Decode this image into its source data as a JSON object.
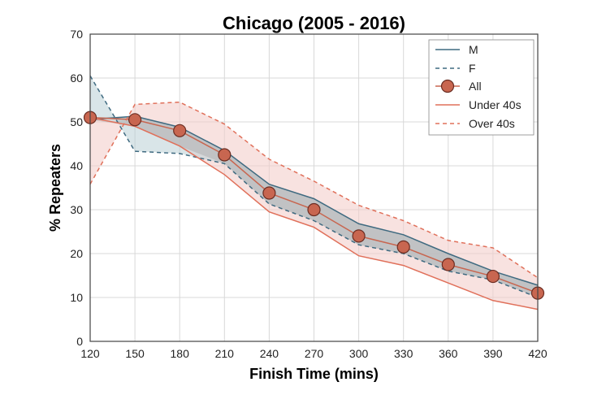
{
  "chart_data": {
    "type": "line",
    "title": "Chicago (2005 - 2016)",
    "xlabel": "Finish Time (mins)",
    "ylabel": "% Repeaters",
    "xlim": [
      120,
      420
    ],
    "ylim": [
      0,
      70
    ],
    "x_ticks": [
      "120",
      "150",
      "180",
      "210",
      "240",
      "270",
      "300",
      "330",
      "360",
      "390",
      "420"
    ],
    "y_ticks": [
      "0",
      "10",
      "20",
      "30",
      "40",
      "50",
      "60",
      "70"
    ],
    "grid": true,
    "legend_position": "top-right",
    "x": [
      120,
      150,
      180,
      210,
      240,
      270,
      300,
      330,
      360,
      390,
      420
    ],
    "series": [
      {
        "name": "M",
        "style": "solid",
        "color": "#3f6a80",
        "values": [
          50.5,
          51.3,
          48.8,
          43.5,
          35.8,
          32.5,
          26.8,
          24.3,
          20.0,
          16.0,
          12.8
        ]
      },
      {
        "name": "F",
        "style": "dashed",
        "color": "#3f6a80",
        "values": [
          60.5,
          43.3,
          42.8,
          40.5,
          31.3,
          27.5,
          22.0,
          20.0,
          16.0,
          14.0,
          10.0
        ]
      },
      {
        "name": "All",
        "style": "marker",
        "color": "#c86650",
        "values": [
          51.0,
          50.5,
          48.0,
          42.5,
          33.8,
          30.0,
          24.0,
          21.5,
          17.5,
          14.8,
          11.0
        ]
      },
      {
        "name": "Under 40s",
        "style": "solid",
        "color": "#e0705a",
        "values": [
          51.0,
          49.0,
          44.5,
          38.0,
          29.5,
          26.0,
          19.5,
          17.3,
          13.3,
          9.3,
          7.3
        ]
      },
      {
        "name": "Over 40s",
        "style": "dashed",
        "color": "#e0705a",
        "values": [
          35.8,
          54.0,
          54.5,
          49.5,
          41.5,
          36.5,
          31.0,
          27.5,
          23.0,
          21.3,
          14.5
        ]
      }
    ],
    "colors": {
      "gender_band_fill": "#b9d0d6",
      "age_band_fill": "#f4cfcb",
      "inner_band_fill": "#a8a8a8",
      "marker_fill": "#c86650",
      "marker_edge": "#6b2d22",
      "grid": "#d8d8d8"
    }
  }
}
